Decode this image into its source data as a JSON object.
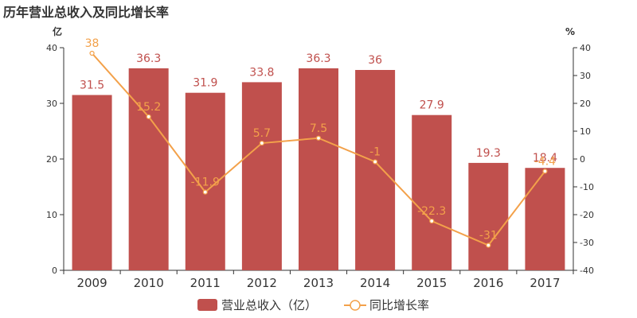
{
  "chart_data": {
    "type": "bar",
    "title": "历年营业总收入及同比增长率",
    "categories": [
      "2009",
      "2010",
      "2011",
      "2012",
      "2013",
      "2014",
      "2015",
      "2016",
      "2017"
    ],
    "left_axis": {
      "unit": "亿",
      "min": 0,
      "max": 40,
      "ticks": [
        0,
        10,
        20,
        30,
        40
      ]
    },
    "right_axis": {
      "unit": "%",
      "min": -40,
      "max": 40,
      "ticks": [
        -40,
        -30,
        -20,
        -10,
        0,
        10,
        20,
        30,
        40
      ]
    },
    "series": [
      {
        "name": "营业总收入（亿）",
        "type": "bar",
        "axis": "left",
        "color": "#c0504d",
        "values": [
          31.5,
          36.3,
          31.9,
          33.8,
          36.3,
          36,
          27.9,
          19.3,
          18.4
        ]
      },
      {
        "name": "同比增长率",
        "type": "line",
        "axis": "right",
        "color": "#f3a14a",
        "values": [
          38,
          15.2,
          -11.9,
          5.7,
          7.5,
          -1,
          -22.3,
          -31,
          -4.4
        ]
      }
    ],
    "grid": false,
    "legend": "bottom"
  }
}
